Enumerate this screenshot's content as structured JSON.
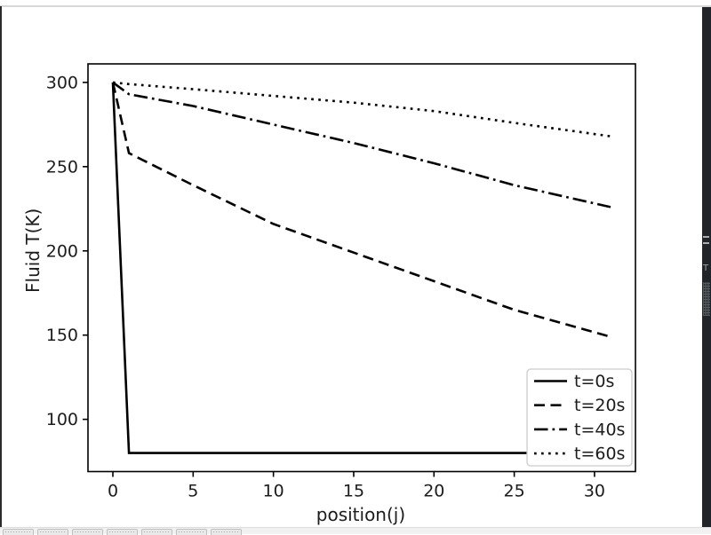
{
  "window": {
    "background": "#ffffff",
    "top_border_color": "#d8d8d8",
    "left_edge_color": "#2b2b2b",
    "right_panel": {
      "color": "#212529",
      "grip_color": "#a9adb2",
      "glyph": "T"
    },
    "taskbar": {
      "background": "#f1f1f1",
      "button_fill": "#e9e9e9",
      "button_border": "#c0c0c0",
      "button_count": 7
    }
  },
  "chart_data": {
    "type": "line",
    "title": "",
    "xlabel": "position(j)",
    "ylabel": "Fluid T(K)",
    "xlim": [
      -1.55,
      32.55
    ],
    "ylim": [
      69,
      311
    ],
    "xticks": [
      0,
      5,
      10,
      15,
      20,
      25,
      30
    ],
    "yticks": [
      100,
      150,
      200,
      250,
      300
    ],
    "grid": false,
    "legend_position": "lower right",
    "line_color": "#000000",
    "text_color": "#1c1c1c",
    "x": [
      0,
      1,
      5,
      10,
      15,
      20,
      25,
      31
    ],
    "series": [
      {
        "name": "t=0s",
        "style": "solid",
        "values": [
          300,
          80,
          80,
          80,
          80,
          80,
          80,
          80
        ]
      },
      {
        "name": "t=20s",
        "style": "dashed",
        "values": [
          300,
          258,
          239,
          216,
          199,
          182,
          165,
          149
        ]
      },
      {
        "name": "t=40s",
        "style": "dashdot",
        "values": [
          300,
          293,
          286,
          275,
          264,
          252,
          239,
          226
        ]
      },
      {
        "name": "t=60s",
        "style": "dotted",
        "values": [
          300,
          299,
          296,
          292,
          288,
          283,
          276,
          268
        ]
      }
    ]
  }
}
